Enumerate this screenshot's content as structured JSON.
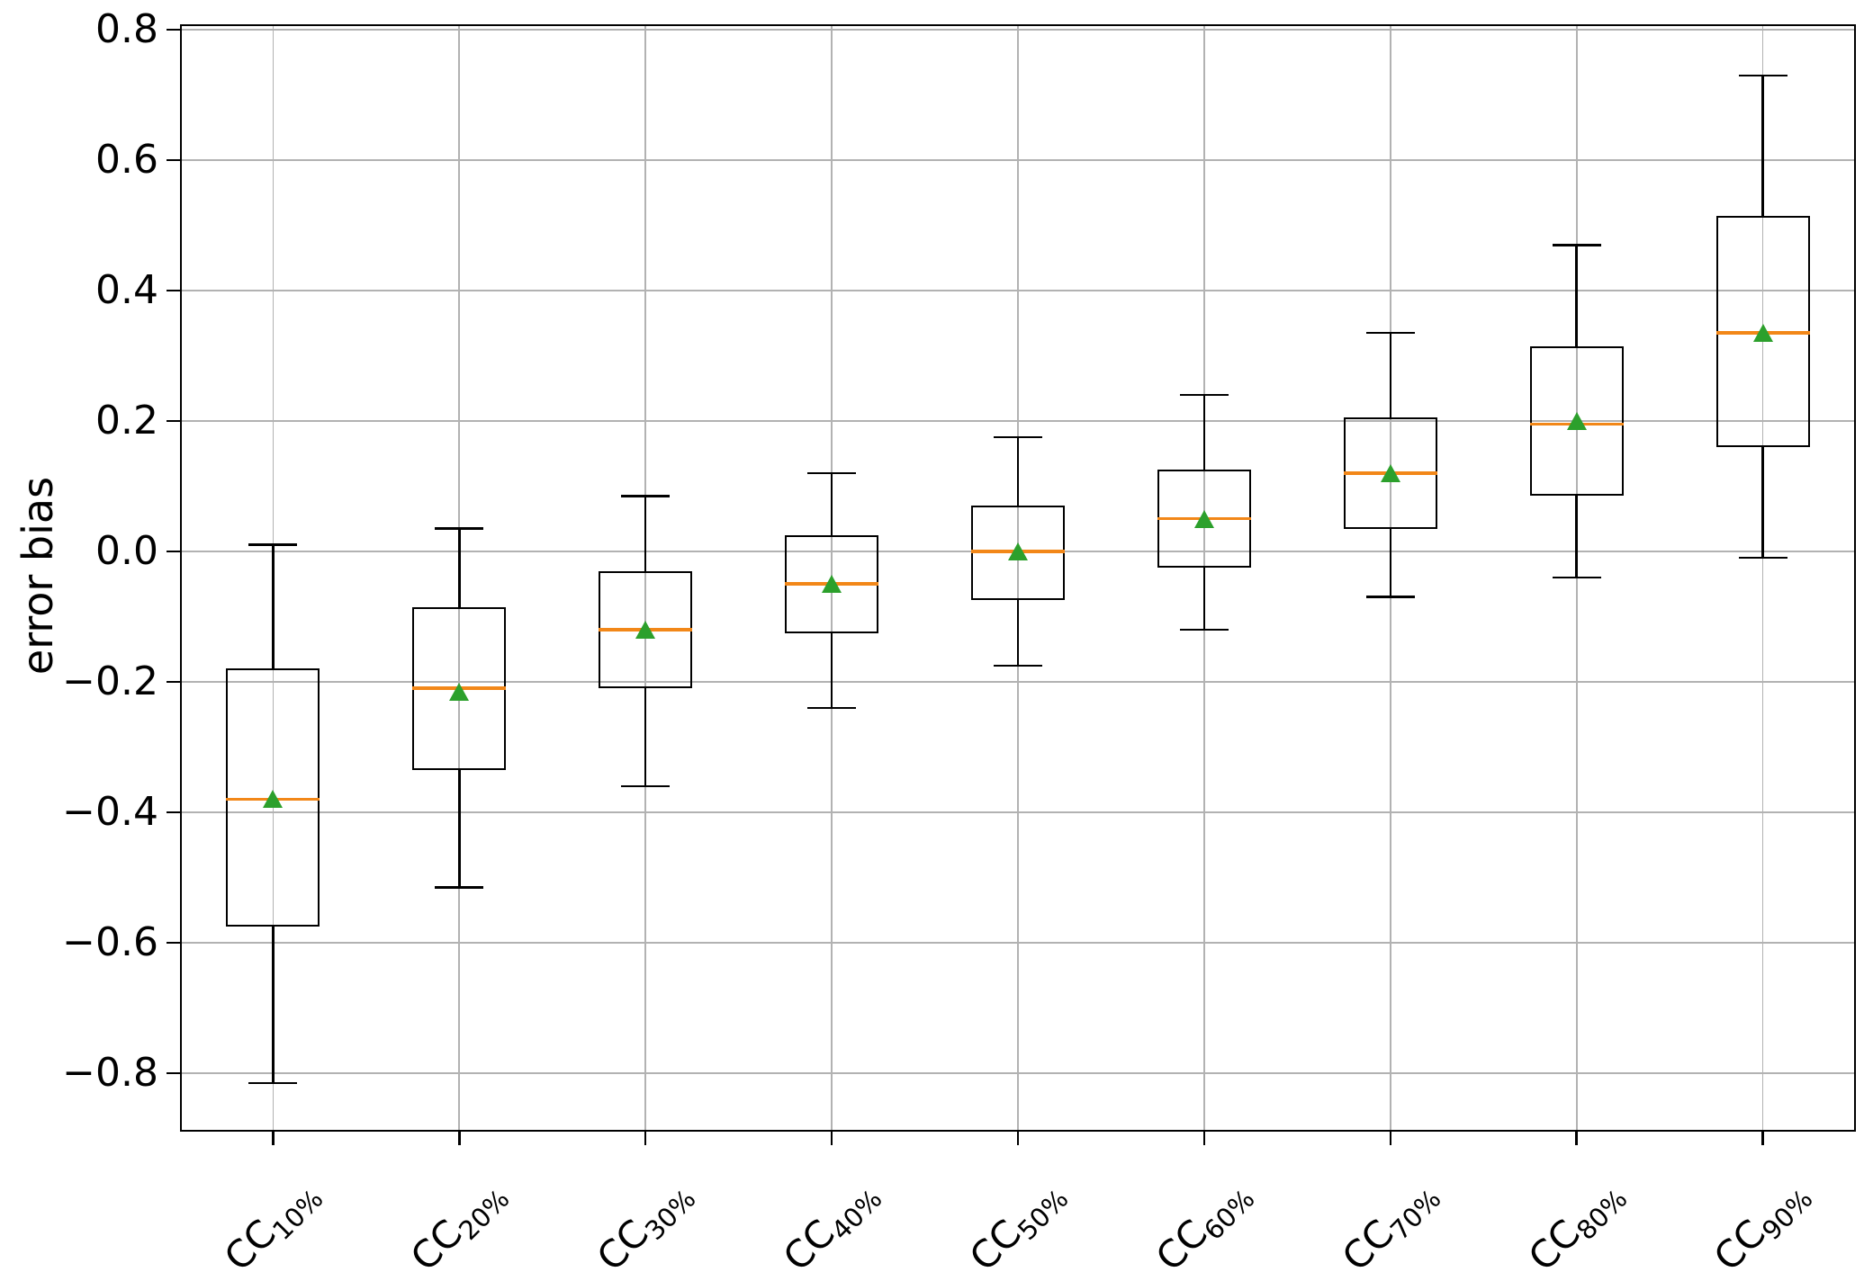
{
  "chart_data": {
    "type": "box",
    "title": "",
    "xlabel": "",
    "ylabel": "error bias",
    "ylim": [
      -0.89,
      0.81
    ],
    "grid": true,
    "legend": "none",
    "yticks": [
      0.8,
      0.6,
      0.4,
      0.2,
      0.0,
      -0.2,
      -0.4,
      -0.6,
      -0.8
    ],
    "ytick_labels": [
      "0.8",
      "0.6",
      "0.4",
      "0.2",
      "0.0",
      "−0.2",
      "−0.4",
      "−0.6",
      "−0.8"
    ],
    "categories": [
      {
        "base": "CC",
        "sub": "10%",
        "label": "CC10%"
      },
      {
        "base": "CC",
        "sub": "20%",
        "label": "CC20%"
      },
      {
        "base": "CC",
        "sub": "30%",
        "label": "CC30%"
      },
      {
        "base": "CC",
        "sub": "40%",
        "label": "CC40%"
      },
      {
        "base": "CC",
        "sub": "50%",
        "label": "CC50%"
      },
      {
        "base": "CC",
        "sub": "60%",
        "label": "CC60%"
      },
      {
        "base": "CC",
        "sub": "70%",
        "label": "CC70%"
      },
      {
        "base": "CC",
        "sub": "80%",
        "label": "CC80%"
      },
      {
        "base": "CC",
        "sub": "90%",
        "label": "CC90%"
      }
    ],
    "boxes": [
      {
        "category": "CC10%",
        "whisker_low": -0.815,
        "q1": -0.575,
        "median": -0.38,
        "mean": -0.38,
        "q3": -0.18,
        "whisker_high": 0.01
      },
      {
        "category": "CC20%",
        "whisker_low": -0.515,
        "q1": -0.335,
        "median": -0.21,
        "mean": -0.215,
        "q3": -0.085,
        "whisker_high": 0.035
      },
      {
        "category": "CC30%",
        "whisker_low": -0.36,
        "q1": -0.21,
        "median": -0.12,
        "mean": -0.12,
        "q3": -0.03,
        "whisker_high": 0.085
      },
      {
        "category": "CC40%",
        "whisker_low": -0.24,
        "q1": -0.125,
        "median": -0.05,
        "mean": -0.05,
        "q3": 0.025,
        "whisker_high": 0.12
      },
      {
        "category": "CC50%",
        "whisker_low": -0.175,
        "q1": -0.075,
        "median": 0.0,
        "mean": 0.0,
        "q3": 0.07,
        "whisker_high": 0.175
      },
      {
        "category": "CC60%",
        "whisker_low": -0.12,
        "q1": -0.025,
        "median": 0.05,
        "mean": 0.05,
        "q3": 0.125,
        "whisker_high": 0.24
      },
      {
        "category": "CC70%",
        "whisker_low": -0.07,
        "q1": 0.035,
        "median": 0.12,
        "mean": 0.12,
        "q3": 0.205,
        "whisker_high": 0.335
      },
      {
        "category": "CC80%",
        "whisker_low": -0.04,
        "q1": 0.085,
        "median": 0.195,
        "mean": 0.2,
        "q3": 0.315,
        "whisker_high": 0.47
      },
      {
        "category": "CC90%",
        "whisker_low": -0.01,
        "q1": 0.16,
        "median": 0.335,
        "mean": 0.335,
        "q3": 0.515,
        "whisker_high": 0.73
      }
    ],
    "colors": {
      "box_line": "#000000",
      "median_line": "#f28718",
      "mean_marker": "#2ca02c",
      "grid_line": "#b2b2b2",
      "background": "#ffffff"
    }
  }
}
